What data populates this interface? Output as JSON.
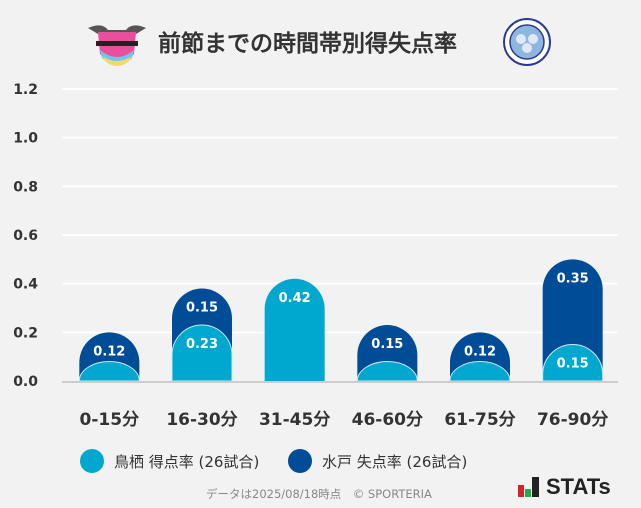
{
  "chart_data": {
    "type": "bar",
    "stacked": true,
    "title": "前節までの時間帯別得失点率",
    "categories": [
      "0-15分",
      "16-30分",
      "31-45分",
      "46-60分",
      "61-75分",
      "76-90分"
    ],
    "series": [
      {
        "name": "鳥栖 得点率 (26試合)",
        "color": "#00a8d0",
        "values": [
          0.08,
          0.23,
          0.42,
          0.08,
          0.08,
          0.15
        ],
        "labels": [
          "",
          "0.23",
          "0.42",
          "",
          "",
          "0.15"
        ]
      },
      {
        "name": "水戸 失点率 (26試合)",
        "color": "#004c97",
        "values": [
          0.12,
          0.15,
          0,
          0.15,
          0.12,
          0.35
        ],
        "labels": [
          "0.12",
          "0.15",
          "",
          "0.15",
          "0.12",
          "0.35"
        ]
      }
    ],
    "yticks": [
      "0.0",
      "0.2",
      "0.4",
      "0.6",
      "0.8",
      "1.0",
      "1.2"
    ],
    "ylim": [
      0,
      1.2
    ],
    "grid": true,
    "legend_position": "bottom"
  },
  "teams": {
    "home_logo": "sagantosu",
    "away_logo": "FC MITO HOLLY HOCK"
  },
  "footer": {
    "note": "データは2025/08/18時点　© SPORTERIA",
    "brand": "STATs"
  }
}
